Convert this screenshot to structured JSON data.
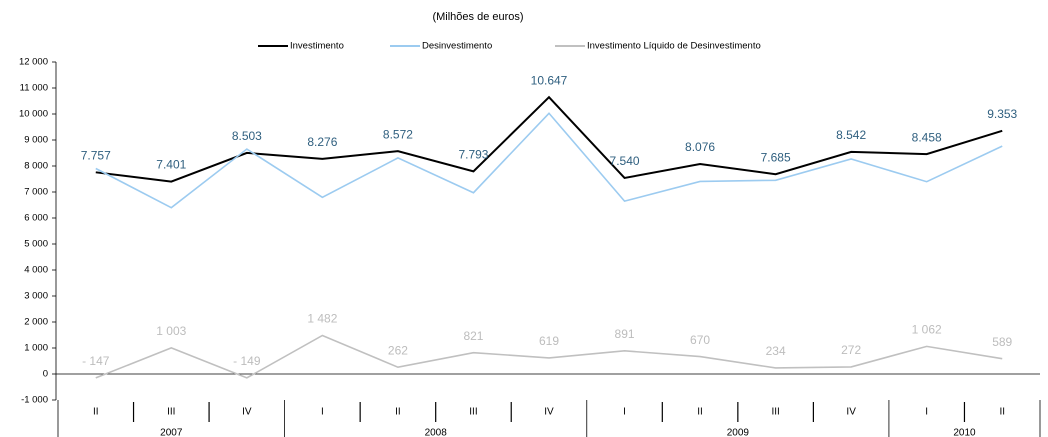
{
  "chart_data": {
    "type": "line",
    "subtitle": "(Milhões de euros)",
    "categories": [
      "II",
      "III",
      "IV",
      "I",
      "II",
      "III",
      "IV",
      "I",
      "II",
      "III",
      "IV",
      "I",
      "II"
    ],
    "groups": [
      {
        "label": "2007",
        "count": 3
      },
      {
        "label": "2008",
        "count": 4
      },
      {
        "label": "2009",
        "count": 4
      },
      {
        "label": "2010",
        "count": 2
      }
    ],
    "series": [
      {
        "name": "Investimento",
        "color": "#000000",
        "label_color": "#2f5f7f",
        "values": [
          7757,
          7401,
          8503,
          8276,
          8572,
          7793,
          10647,
          7540,
          8076,
          7685,
          8542,
          8458,
          9353
        ],
        "value_labels": [
          "7.757",
          "7.401",
          "8.503",
          "8.276",
          "8.572",
          "7.793",
          "10.647",
          "7.540",
          "8.076",
          "7.685",
          "8.542",
          "8.458",
          "9.353"
        ]
      },
      {
        "name": "Desinvestimento",
        "color": "#9ccbf0",
        "values": [
          7904,
          6398,
          8652,
          6794,
          8310,
          6972,
          10028,
          6649,
          7406,
          7451,
          8270,
          7396,
          8764
        ]
      },
      {
        "name": "Investimento Líquido de Desinvestimento",
        "color": "#c0c0c0",
        "label_color": "#bdbdbd",
        "values": [
          -147,
          1003,
          -149,
          1482,
          262,
          821,
          619,
          891,
          670,
          234,
          272,
          1062,
          589
        ],
        "value_labels": [
          "-   147",
          "1 003",
          "-   149",
          "1 482",
          "262",
          "821",
          "619",
          "891",
          "670",
          "234",
          "272",
          "1 062",
          "589"
        ]
      }
    ],
    "ylim": [
      -1000,
      12000
    ],
    "yticks": [
      {
        "value": -1000,
        "label": "-1 000"
      },
      0,
      {
        "value": 1000,
        "label": "1 000"
      },
      {
        "value": 2000,
        "label": "2 000"
      },
      {
        "value": 3000,
        "label": "3 000"
      },
      {
        "value": 4000,
        "label": "4 000"
      },
      {
        "value": 5000,
        "label": "5 000"
      },
      {
        "value": 6000,
        "label": "6 000"
      },
      {
        "value": 7000,
        "label": "7 000"
      },
      {
        "value": 8000,
        "label": "8 000"
      },
      {
        "value": 9000,
        "label": "9 000"
      },
      {
        "value": 10000,
        "label": "10 000"
      },
      {
        "value": 11000,
        "label": "11 000"
      },
      {
        "value": 12000,
        "label": "12 000"
      }
    ],
    "legend": "top"
  }
}
